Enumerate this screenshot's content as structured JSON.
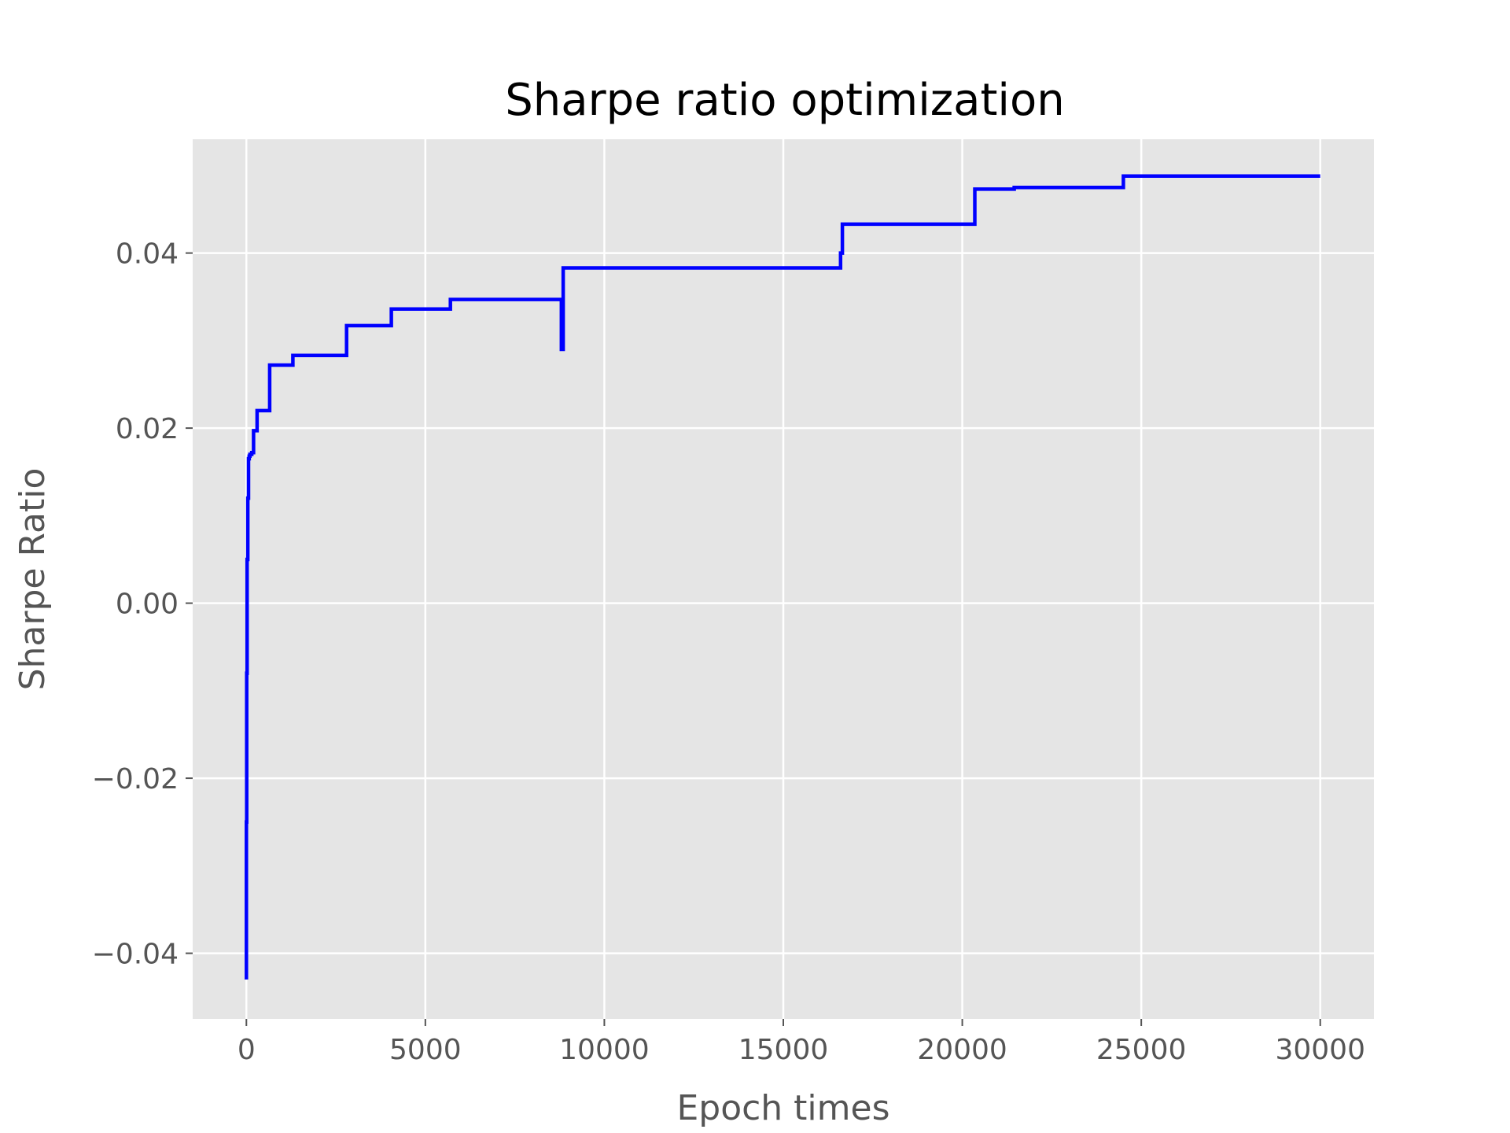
{
  "chart_data": {
    "type": "line",
    "title": "Sharpe ratio optimization",
    "xlabel": "Epoch times",
    "ylabel": "Sharpe Ratio",
    "xlim": [
      -1500,
      31500
    ],
    "ylim": [
      -0.0475,
      0.053
    ],
    "xticks": [
      0,
      5000,
      10000,
      15000,
      20000,
      25000,
      30000
    ],
    "xtick_labels": [
      "0",
      "5000",
      "10000",
      "15000",
      "20000",
      "25000",
      "30000"
    ],
    "yticks": [
      -0.04,
      -0.02,
      0.0,
      0.02,
      0.04
    ],
    "ytick_labels": [
      "−0.04",
      "−0.02",
      "0.00",
      "0.02",
      "0.04"
    ],
    "grid": true,
    "background": "#e5e5e5",
    "grid_color": "#ffffff",
    "series": [
      {
        "color": "#0000ff",
        "x": [
          0,
          0,
          10,
          10,
          20,
          20,
          40,
          40,
          60,
          60,
          80,
          80,
          100,
          100,
          150,
          150,
          200,
          200,
          300,
          300,
          650,
          650,
          1300,
          1300,
          2800,
          2800,
          4050,
          4050,
          5700,
          5700,
          8800,
          8800,
          8850,
          8850,
          16600,
          16600,
          16650,
          16650,
          20350,
          20350,
          21450,
          21450,
          24500,
          24500,
          30000
        ],
        "y": [
          -0.043,
          -0.025,
          -0.025,
          -0.008,
          -0.008,
          0.005,
          0.005,
          0.012,
          0.012,
          0.0165,
          0.0165,
          0.0168,
          0.0168,
          0.017,
          0.017,
          0.0172,
          0.0172,
          0.0197,
          0.0197,
          0.022,
          0.022,
          0.0272,
          0.0272,
          0.0283,
          0.0283,
          0.0317,
          0.0317,
          0.0336,
          0.0336,
          0.0347,
          0.0347,
          0.029,
          0.029,
          0.0383,
          0.0383,
          0.04,
          0.04,
          0.0433,
          0.0433,
          0.0473,
          0.0473,
          0.0475,
          0.0475,
          0.0488,
          0.0488
        ]
      }
    ]
  }
}
